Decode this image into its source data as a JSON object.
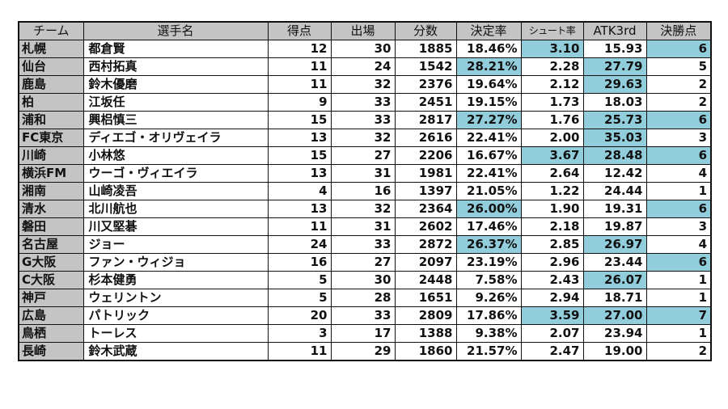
{
  "colors": {
    "header_bg": "#c4c4c4",
    "team_col_bg": "#c4c4c4",
    "highlight": "#92cddc",
    "border": "#111111"
  },
  "columns": [
    "チーム",
    "選手名",
    "得点",
    "出場",
    "分数",
    "決定率",
    "シュート率",
    "ATK3rd",
    "決勝点"
  ],
  "rows": [
    {
      "team": "札幌",
      "player": "都倉賢",
      "goals": "12",
      "apps": "30",
      "minutes": "1885",
      "conv_rate": "18.46%",
      "shot_rate": "3.10",
      "atk3rd": "15.93",
      "winners": "6",
      "hl": {
        "conv_rate": false,
        "shot_rate": true,
        "atk3rd": false,
        "winners": true
      }
    },
    {
      "team": "仙台",
      "player": "西村拓真",
      "goals": "11",
      "apps": "24",
      "minutes": "1542",
      "conv_rate": "28.21%",
      "shot_rate": "2.28",
      "atk3rd": "27.79",
      "winners": "5",
      "hl": {
        "conv_rate": true,
        "shot_rate": false,
        "atk3rd": true,
        "winners": false
      }
    },
    {
      "team": "鹿島",
      "player": "鈴木優磨",
      "goals": "11",
      "apps": "32",
      "minutes": "2376",
      "conv_rate": "19.64%",
      "shot_rate": "2.12",
      "atk3rd": "29.63",
      "winners": "2",
      "hl": {
        "conv_rate": false,
        "shot_rate": false,
        "atk3rd": true,
        "winners": false
      }
    },
    {
      "team": "柏",
      "player": "江坂任",
      "goals": "9",
      "apps": "33",
      "minutes": "2451",
      "conv_rate": "19.15%",
      "shot_rate": "1.73",
      "atk3rd": "18.03",
      "winners": "2",
      "hl": {
        "conv_rate": false,
        "shot_rate": false,
        "atk3rd": false,
        "winners": false
      }
    },
    {
      "team": "浦和",
      "player": "興梠慎三",
      "goals": "15",
      "apps": "33",
      "minutes": "2817",
      "conv_rate": "27.27%",
      "shot_rate": "1.76",
      "atk3rd": "25.73",
      "winners": "6",
      "hl": {
        "conv_rate": true,
        "shot_rate": false,
        "atk3rd": true,
        "winners": true
      }
    },
    {
      "team": "FC東京",
      "player": "ディエゴ・オリヴェイラ",
      "goals": "13",
      "apps": "32",
      "minutes": "2616",
      "conv_rate": "22.41%",
      "shot_rate": "2.00",
      "atk3rd": "35.03",
      "winners": "3",
      "hl": {
        "conv_rate": false,
        "shot_rate": false,
        "atk3rd": true,
        "winners": false
      }
    },
    {
      "team": "川崎",
      "player": "小林悠",
      "goals": "15",
      "apps": "27",
      "minutes": "2206",
      "conv_rate": "16.67%",
      "shot_rate": "3.67",
      "atk3rd": "28.48",
      "winners": "6",
      "hl": {
        "conv_rate": false,
        "shot_rate": true,
        "atk3rd": true,
        "winners": true
      }
    },
    {
      "team": "横浜FM",
      "player": "ウーゴ・ヴィエイラ",
      "goals": "13",
      "apps": "31",
      "minutes": "1981",
      "conv_rate": "22.41%",
      "shot_rate": "2.64",
      "atk3rd": "12.42",
      "winners": "4",
      "hl": {
        "conv_rate": false,
        "shot_rate": false,
        "atk3rd": false,
        "winners": false
      }
    },
    {
      "team": "湘南",
      "player": "山崎凌吾",
      "goals": "4",
      "apps": "16",
      "minutes": "1397",
      "conv_rate": "21.05%",
      "shot_rate": "1.22",
      "atk3rd": "24.44",
      "winners": "1",
      "hl": {
        "conv_rate": false,
        "shot_rate": false,
        "atk3rd": false,
        "winners": false
      }
    },
    {
      "team": "清水",
      "player": "北川航也",
      "goals": "13",
      "apps": "32",
      "minutes": "2364",
      "conv_rate": "26.00%",
      "shot_rate": "1.90",
      "atk3rd": "19.31",
      "winners": "6",
      "hl": {
        "conv_rate": true,
        "shot_rate": false,
        "atk3rd": false,
        "winners": true
      }
    },
    {
      "team": "磐田",
      "player": "川又堅碁",
      "goals": "11",
      "apps": "31",
      "minutes": "2602",
      "conv_rate": "17.46%",
      "shot_rate": "2.18",
      "atk3rd": "19.87",
      "winners": "3",
      "hl": {
        "conv_rate": false,
        "shot_rate": false,
        "atk3rd": false,
        "winners": false
      }
    },
    {
      "team": "名古屋",
      "player": "ジョー",
      "goals": "24",
      "apps": "33",
      "minutes": "2872",
      "conv_rate": "26.37%",
      "shot_rate": "2.85",
      "atk3rd": "26.97",
      "winners": "4",
      "hl": {
        "conv_rate": true,
        "shot_rate": false,
        "atk3rd": true,
        "winners": false
      }
    },
    {
      "team": "G大阪",
      "player": "ファン・ウィジョ",
      "goals": "16",
      "apps": "27",
      "minutes": "2097",
      "conv_rate": "23.19%",
      "shot_rate": "2.96",
      "atk3rd": "23.44",
      "winners": "6",
      "hl": {
        "conv_rate": false,
        "shot_rate": false,
        "atk3rd": false,
        "winners": true
      }
    },
    {
      "team": "C大阪",
      "player": "杉本健勇",
      "goals": "5",
      "apps": "30",
      "minutes": "2448",
      "conv_rate": "7.58%",
      "shot_rate": "2.43",
      "atk3rd": "26.07",
      "winners": "1",
      "hl": {
        "conv_rate": false,
        "shot_rate": false,
        "atk3rd": true,
        "winners": false
      }
    },
    {
      "team": "神戸",
      "player": "ウェリントン",
      "goals": "5",
      "apps": "28",
      "minutes": "1651",
      "conv_rate": "9.26%",
      "shot_rate": "2.94",
      "atk3rd": "18.71",
      "winners": "1",
      "hl": {
        "conv_rate": false,
        "shot_rate": false,
        "atk3rd": false,
        "winners": false
      }
    },
    {
      "team": "広島",
      "player": "パトリック",
      "goals": "20",
      "apps": "33",
      "minutes": "2809",
      "conv_rate": "17.86%",
      "shot_rate": "3.59",
      "atk3rd": "27.00",
      "winners": "7",
      "hl": {
        "conv_rate": false,
        "shot_rate": true,
        "atk3rd": true,
        "winners": true
      }
    },
    {
      "team": "鳥栖",
      "player": "トーレス",
      "goals": "3",
      "apps": "17",
      "minutes": "1388",
      "conv_rate": "9.38%",
      "shot_rate": "2.07",
      "atk3rd": "23.94",
      "winners": "1",
      "hl": {
        "conv_rate": false,
        "shot_rate": false,
        "atk3rd": false,
        "winners": false
      }
    },
    {
      "team": "長崎",
      "player": "鈴木武蔵",
      "goals": "11",
      "apps": "29",
      "minutes": "1860",
      "conv_rate": "21.57%",
      "shot_rate": "2.47",
      "atk3rd": "19.00",
      "winners": "2",
      "hl": {
        "conv_rate": false,
        "shot_rate": false,
        "atk3rd": false,
        "winners": false
      }
    }
  ]
}
